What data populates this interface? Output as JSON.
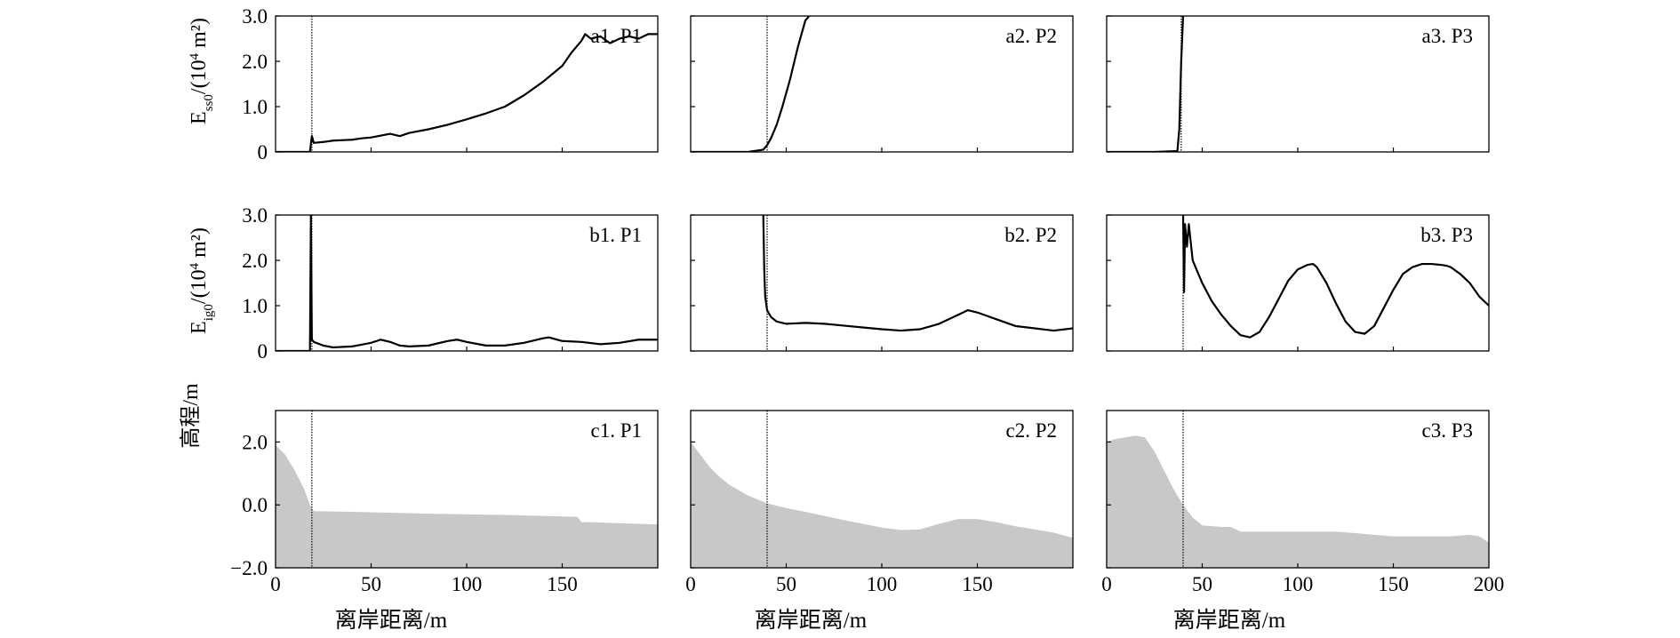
{
  "figure": {
    "ylabel_row_a": "E_ss0/(10^4 m^2)",
    "ylabel_row_b": "E_ig0/(10^4 m^2)",
    "ylabel_row_c": "高程/m",
    "xlabel": "离岸距离/m"
  },
  "chart_data": [
    {
      "id": "a1",
      "type": "line",
      "label": "a1. P1",
      "row": "a",
      "col": 0,
      "xlim": [
        0,
        200
      ],
      "ylim": [
        0,
        3
      ],
      "yticks": [
        "0",
        "1.0",
        "2.0",
        "3.0"
      ],
      "shoreline_x": 19,
      "x": [
        0,
        18,
        19,
        20,
        25,
        30,
        40,
        45,
        50,
        60,
        65,
        70,
        80,
        90,
        100,
        110,
        120,
        130,
        140,
        150,
        155,
        160,
        162,
        165,
        170,
        175,
        180,
        185,
        190,
        195,
        200
      ],
      "y": [
        0,
        0,
        0.35,
        0.2,
        0.22,
        0.25,
        0.27,
        0.3,
        0.32,
        0.4,
        0.35,
        0.42,
        0.5,
        0.6,
        0.72,
        0.85,
        1.0,
        1.25,
        1.55,
        1.9,
        2.2,
        2.45,
        2.6,
        2.5,
        2.55,
        2.4,
        2.5,
        2.55,
        2.5,
        2.6,
        2.6
      ]
    },
    {
      "id": "a2",
      "type": "line",
      "label": "a2. P2",
      "row": "a",
      "col": 1,
      "xlim": [
        0,
        200
      ],
      "ylim": [
        0,
        3
      ],
      "shoreline_x": 40,
      "x": [
        0,
        30,
        38,
        40,
        42,
        45,
        48,
        52,
        56,
        60,
        62
      ],
      "y": [
        0,
        0,
        0.05,
        0.15,
        0.3,
        0.6,
        1.0,
        1.6,
        2.3,
        2.9,
        3.0
      ]
    },
    {
      "id": "a3",
      "type": "line",
      "label": "a3. P3",
      "row": "a",
      "col": 2,
      "xlim": [
        0,
        200
      ],
      "ylim": [
        0,
        3
      ],
      "shoreline_x": 39,
      "x": [
        0,
        25,
        37,
        38,
        39,
        40
      ],
      "y": [
        0,
        0,
        0.02,
        0.5,
        2.0,
        3.0
      ]
    },
    {
      "id": "b1",
      "type": "line",
      "label": "b1. P1",
      "row": "b",
      "col": 0,
      "xlim": [
        0,
        200
      ],
      "ylim": [
        0,
        3
      ],
      "yticks": [
        "0",
        "1.0",
        "2.0",
        "3.0"
      ],
      "shoreline_x": 19,
      "x": [
        0,
        18,
        18.5,
        19,
        20,
        25,
        30,
        40,
        50,
        55,
        60,
        65,
        70,
        80,
        90,
        95,
        100,
        110,
        120,
        130,
        140,
        143,
        150,
        160,
        170,
        180,
        190,
        200
      ],
      "y": [
        0,
        0,
        3.0,
        0.25,
        0.2,
        0.12,
        0.08,
        0.1,
        0.18,
        0.25,
        0.2,
        0.12,
        0.1,
        0.12,
        0.22,
        0.25,
        0.2,
        0.12,
        0.12,
        0.18,
        0.28,
        0.3,
        0.22,
        0.2,
        0.15,
        0.18,
        0.25,
        0.25
      ]
    },
    {
      "id": "b2",
      "type": "line",
      "label": "b2. P2",
      "row": "b",
      "col": 1,
      "xlim": [
        0,
        200
      ],
      "ylim": [
        0,
        3
      ],
      "shoreline_x": 40,
      "x": [
        38,
        38.5,
        39,
        40,
        42,
        45,
        50,
        60,
        70,
        80,
        90,
        100,
        110,
        120,
        130,
        140,
        145,
        150,
        160,
        170,
        180,
        190,
        200
      ],
      "y": [
        3.0,
        1.8,
        1.2,
        0.9,
        0.75,
        0.65,
        0.6,
        0.62,
        0.6,
        0.56,
        0.52,
        0.48,
        0.45,
        0.48,
        0.6,
        0.8,
        0.9,
        0.85,
        0.7,
        0.55,
        0.5,
        0.45,
        0.5
      ]
    },
    {
      "id": "b3",
      "type": "line",
      "label": "b3. P3",
      "row": "b",
      "col": 2,
      "xlim": [
        0,
        200
      ],
      "ylim": [
        0,
        3
      ],
      "shoreline_x": 40,
      "x": [
        40,
        40.5,
        41,
        42,
        43,
        44,
        45,
        47,
        50,
        55,
        60,
        65,
        70,
        75,
        80,
        85,
        90,
        95,
        100,
        105,
        108,
        110,
        115,
        120,
        125,
        130,
        135,
        140,
        145,
        150,
        155,
        160,
        165,
        170,
        175,
        178,
        180,
        185,
        190,
        195,
        200
      ],
      "y": [
        3.0,
        1.3,
        2.8,
        2.3,
        2.8,
        2.4,
        2.0,
        1.8,
        1.5,
        1.1,
        0.8,
        0.55,
        0.35,
        0.3,
        0.42,
        0.75,
        1.15,
        1.55,
        1.8,
        1.9,
        1.92,
        1.85,
        1.5,
        1.05,
        0.65,
        0.42,
        0.38,
        0.55,
        0.95,
        1.35,
        1.7,
        1.85,
        1.92,
        1.92,
        1.9,
        1.88,
        1.85,
        1.7,
        1.5,
        1.2,
        1.0
      ]
    },
    {
      "id": "c1",
      "type": "area",
      "label": "c1. P1",
      "row": "c",
      "col": 0,
      "xlim": [
        0,
        200
      ],
      "ylim": [
        -2,
        3
      ],
      "yticks": [
        "−2.0",
        "0.0",
        "2.0"
      ],
      "xticks": [
        "0",
        "50",
        "100",
        "150"
      ],
      "shoreline_x": 19,
      "x": [
        0,
        5,
        10,
        15,
        18,
        20,
        40,
        60,
        80,
        100,
        120,
        140,
        158,
        160,
        165,
        170,
        180,
        190,
        200
      ],
      "y": [
        1.9,
        1.6,
        1.1,
        0.5,
        0.0,
        -0.2,
        -0.22,
        -0.25,
        -0.28,
        -0.3,
        -0.32,
        -0.35,
        -0.38,
        -0.55,
        -0.55,
        -0.56,
        -0.58,
        -0.6,
        -0.62
      ]
    },
    {
      "id": "c2",
      "type": "area",
      "label": "c2. P2",
      "row": "c",
      "col": 1,
      "xlim": [
        0,
        200
      ],
      "ylim": [
        -2,
        3
      ],
      "xticks": [
        "0",
        "50",
        "100",
        "150"
      ],
      "shoreline_x": 40,
      "x": [
        0,
        5,
        10,
        15,
        20,
        30,
        40,
        50,
        60,
        70,
        80,
        90,
        100,
        110,
        120,
        130,
        140,
        150,
        160,
        170,
        180,
        190,
        200
      ],
      "y": [
        2.0,
        1.6,
        1.2,
        0.9,
        0.65,
        0.3,
        0.05,
        -0.1,
        -0.22,
        -0.35,
        -0.48,
        -0.6,
        -0.72,
        -0.8,
        -0.78,
        -0.6,
        -0.45,
        -0.45,
        -0.55,
        -0.68,
        -0.78,
        -0.88,
        -1.05
      ]
    },
    {
      "id": "c3",
      "type": "area",
      "label": "c3. P3",
      "row": "c",
      "col": 2,
      "xlim": [
        0,
        200
      ],
      "ylim": [
        -2,
        3
      ],
      "xticks": [
        "0",
        "50",
        "100",
        "150",
        "200"
      ],
      "shoreline_x": 40,
      "x": [
        0,
        5,
        10,
        15,
        20,
        25,
        30,
        35,
        40,
        45,
        50,
        60,
        65,
        70,
        80,
        90,
        100,
        110,
        120,
        130,
        140,
        150,
        160,
        170,
        180,
        190,
        195,
        200
      ],
      "y": [
        2.0,
        2.1,
        2.15,
        2.2,
        2.15,
        1.7,
        1.1,
        0.5,
        0.0,
        -0.4,
        -0.65,
        -0.7,
        -0.7,
        -0.85,
        -0.85,
        -0.85,
        -0.85,
        -0.85,
        -0.85,
        -0.9,
        -0.95,
        -1.0,
        -1.0,
        -1.0,
        -1.0,
        -0.95,
        -1.0,
        -1.2
      ]
    }
  ]
}
